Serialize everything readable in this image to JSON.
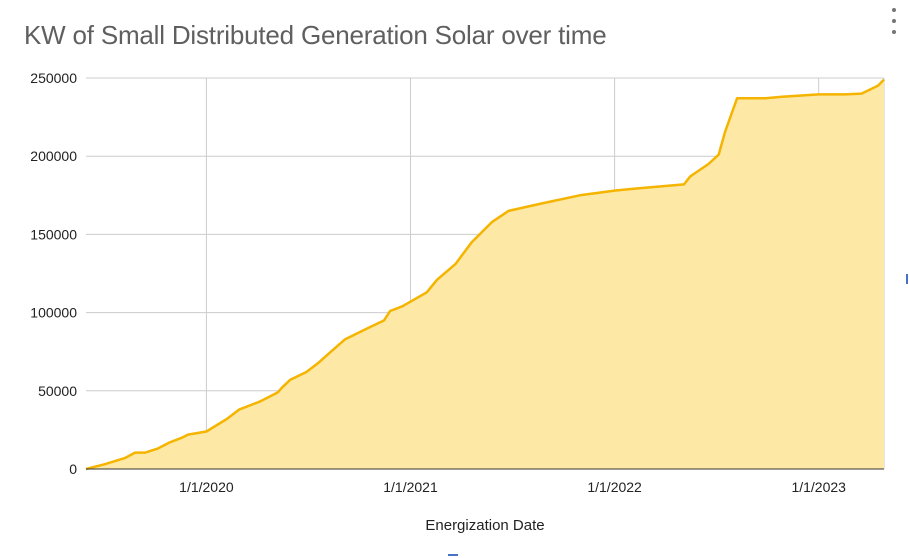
{
  "menu": {
    "icon": "more-vert-icon"
  },
  "colors": {
    "line": "#f4b400",
    "fill": "#fde8a6",
    "grid": "#cccccc",
    "baseline": "#333333"
  },
  "chart_data": {
    "type": "area",
    "title": "KW of Small Distributed Generation Solar over time",
    "xlabel": "Energization Date",
    "ylabel": "",
    "x_type": "date",
    "xlim": [
      2019.41,
      2023.32
    ],
    "ylim": [
      0,
      250000
    ],
    "y_ticks": [
      0,
      50000,
      100000,
      150000,
      200000,
      250000
    ],
    "y_tick_labels": [
      "0",
      "50000",
      "100000",
      "150000",
      "200000",
      "250000"
    ],
    "x_ticks": [
      2020,
      2021,
      2022,
      2023
    ],
    "x_tick_labels": [
      "1/1/2020",
      "1/1/2021",
      "1/1/2022",
      "1/1/2023"
    ],
    "grid": true,
    "series": [
      {
        "name": "KW",
        "x": [
          2019.41,
          2019.5,
          2019.6,
          2019.65,
          2019.7,
          2019.76,
          2019.82,
          2019.88,
          2019.91,
          2020.0,
          2020.1,
          2020.16,
          2020.26,
          2020.35,
          2020.37,
          2020.41,
          2020.49,
          2020.55,
          2020.61,
          2020.68,
          2020.79,
          2020.87,
          2020.9,
          2020.96,
          2021.08,
          2021.13,
          2021.22,
          2021.3,
          2021.4,
          2021.48,
          2021.65,
          2021.83,
          2022.0,
          2022.08,
          2022.34,
          2022.37,
          2022.46,
          2022.51,
          2022.54,
          2022.57,
          2022.6,
          2022.74,
          2022.82,
          2023.0,
          2023.13,
          2023.21,
          2023.29,
          2023.32
        ],
        "values": [
          0,
          3000,
          7000,
          10500,
          10500,
          13000,
          17000,
          20000,
          22000,
          24000,
          32000,
          38000,
          43000,
          49000,
          52000,
          57000,
          62000,
          68000,
          75000,
          83000,
          90000,
          95000,
          101000,
          104000,
          113000,
          121000,
          131000,
          145000,
          158000,
          165000,
          170000,
          175000,
          178000,
          179000,
          182000,
          187000,
          195000,
          201000,
          215000,
          226000,
          237000,
          237000,
          238000,
          239500,
          239500,
          240000,
          245000,
          249000
        ]
      }
    ]
  }
}
